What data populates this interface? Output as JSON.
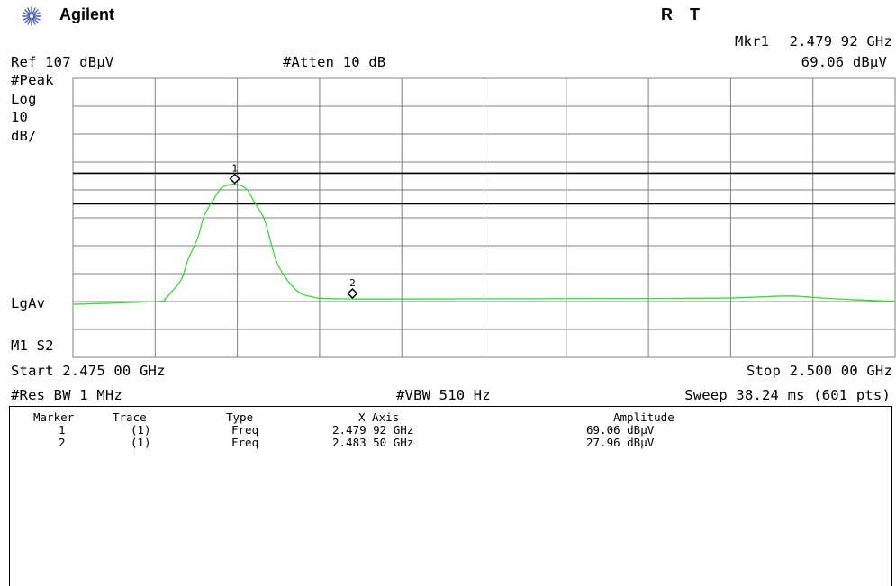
{
  "header": {
    "brand": "Agilent",
    "status_r": "R",
    "status_t": "T",
    "marker_readout_label": "Mkr1",
    "marker_readout_freq": "2.479 92 GHz",
    "marker_readout_amp": "69.06 dBµV",
    "ref_level": "Ref 107 dBµV",
    "attenuation": "#Atten 10 dB"
  },
  "side_labels": {
    "detector": "#Peak",
    "scale_type": "Log",
    "scale_value": "10",
    "scale_unit": "dB/",
    "avg_type": "LgAv",
    "mode": "M1  S2"
  },
  "footer": {
    "start": "Start 2.475 00 GHz",
    "stop": "Stop 2.500 00 GHz",
    "rbw": "#Res BW 1 MHz",
    "vbw": "#VBW 510 Hz",
    "sweep": "Sweep 38.24 ms (601 pts)"
  },
  "marker_table": {
    "headers": [
      "Marker",
      "Trace",
      "Type",
      "X Axis",
      "Amplitude"
    ],
    "rows": [
      [
        "1",
        "(1)",
        "Freq",
        "2.479 92 GHz",
        "69.06 dBµV"
      ],
      [
        "2",
        "(1)",
        "Freq",
        "2.483 50 GHz",
        "27.96 dBµV"
      ]
    ]
  },
  "colors": {
    "trace": "#33dd33",
    "grid": "#808080",
    "limit_line": "#000000"
  },
  "chart_data": {
    "type": "line",
    "title": "",
    "xlabel": "",
    "ylabel": "",
    "xlim": [
      2.475,
      2.5
    ],
    "ylim": [
      7,
      107
    ],
    "x_unit": "GHz",
    "y_unit": "dBµV",
    "grid": true,
    "limit_lines": [
      73,
      62
    ],
    "series": [
      {
        "x": [
          2.475,
          2.4775,
          2.4778,
          2.478,
          2.4783,
          2.4785,
          2.4788,
          2.479,
          2.4793,
          2.4795,
          2.4797,
          2.47992,
          2.4801,
          2.4803,
          2.4805,
          2.4808,
          2.481,
          2.4812,
          2.4815,
          2.4818,
          2.482,
          2.4823,
          2.4825,
          2.483,
          2.4835,
          2.484,
          2.4875,
          2.4925,
          2.495,
          2.4967,
          2.4975,
          2.4985,
          2.4995,
          2.5
        ],
        "y": [
          26,
          27,
          28,
          30.5,
          35,
          42,
          50,
          58,
          64,
          67.5,
          68.7,
          69.06,
          68.6,
          67,
          63,
          57,
          49,
          41,
          35,
          31,
          29.5,
          28.6,
          28.2,
          28.0,
          27.96,
          27.9,
          28.0,
          28.1,
          28.3,
          29.0,
          28.5,
          27.8,
          27.3,
          27.1
        ]
      }
    ],
    "markers": [
      {
        "label": "1",
        "x": 2.47992,
        "y": 69.06
      },
      {
        "label": "2",
        "x": 2.4835,
        "y": 27.96
      }
    ]
  }
}
